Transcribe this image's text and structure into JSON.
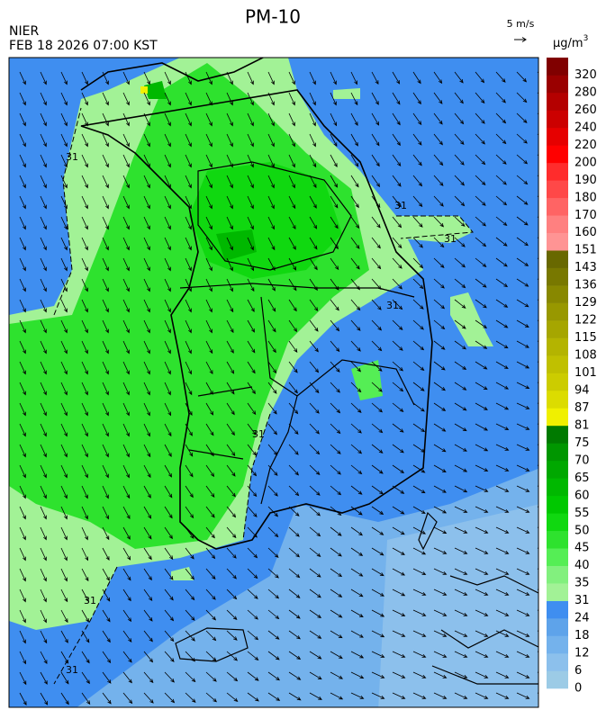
{
  "header": {
    "title": "PM-10",
    "source": "NIER",
    "time": "FEB 18 2026 07:00 KST",
    "wind_scale": "5 m/s",
    "unit": "μg/m",
    "unit_sup": "3"
  },
  "legend": {
    "levels": [
      0,
      6,
      12,
      18,
      24,
      31,
      35,
      40,
      45,
      50,
      55,
      60,
      65,
      70,
      75,
      81,
      87,
      94,
      101,
      108,
      115,
      122,
      129,
      136,
      143,
      151,
      160,
      170,
      180,
      190,
      200,
      220,
      240,
      260,
      280,
      320
    ],
    "colors": [
      "#9ccbe6",
      "#8cc0ec",
      "#74b2ec",
      "#5ea3ea",
      "#3f8ef0",
      "#a2f296",
      "#82f07e",
      "#55ee55",
      "#2ee22e",
      "#10d810",
      "#00c800",
      "#00b800",
      "#00a800",
      "#009600",
      "#007a00",
      "#f0f000",
      "#dcdc00",
      "#cccc00",
      "#c0c000",
      "#b4b400",
      "#a6a600",
      "#989800",
      "#888800",
      "#787800",
      "#686800",
      "#ff9494",
      "#ff8080",
      "#ff6464",
      "#ff4848",
      "#ff2c2c",
      "#ff0000",
      "#e60000",
      "#cc0000",
      "#b40000",
      "#9a0000",
      "#800000"
    ]
  },
  "contour_labels": [
    "31",
    "31",
    "31",
    "31",
    "31",
    "31",
    "31"
  ]
}
